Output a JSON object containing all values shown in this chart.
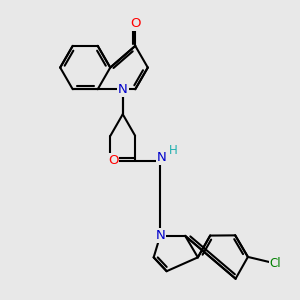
{
  "bg_color": "#e8e8e8",
  "bond_color": "#000000",
  "bond_width": 1.5,
  "atom_colors": {
    "N": "#0000cc",
    "O": "#ff0000",
    "Cl": "#008000",
    "H": "#20b0b0"
  },
  "font_size": 8.5,
  "fig_size": [
    3.0,
    3.0
  ],
  "dpi": 100,
  "xlim": [
    0,
    10
  ],
  "ylim": [
    0,
    10
  ]
}
